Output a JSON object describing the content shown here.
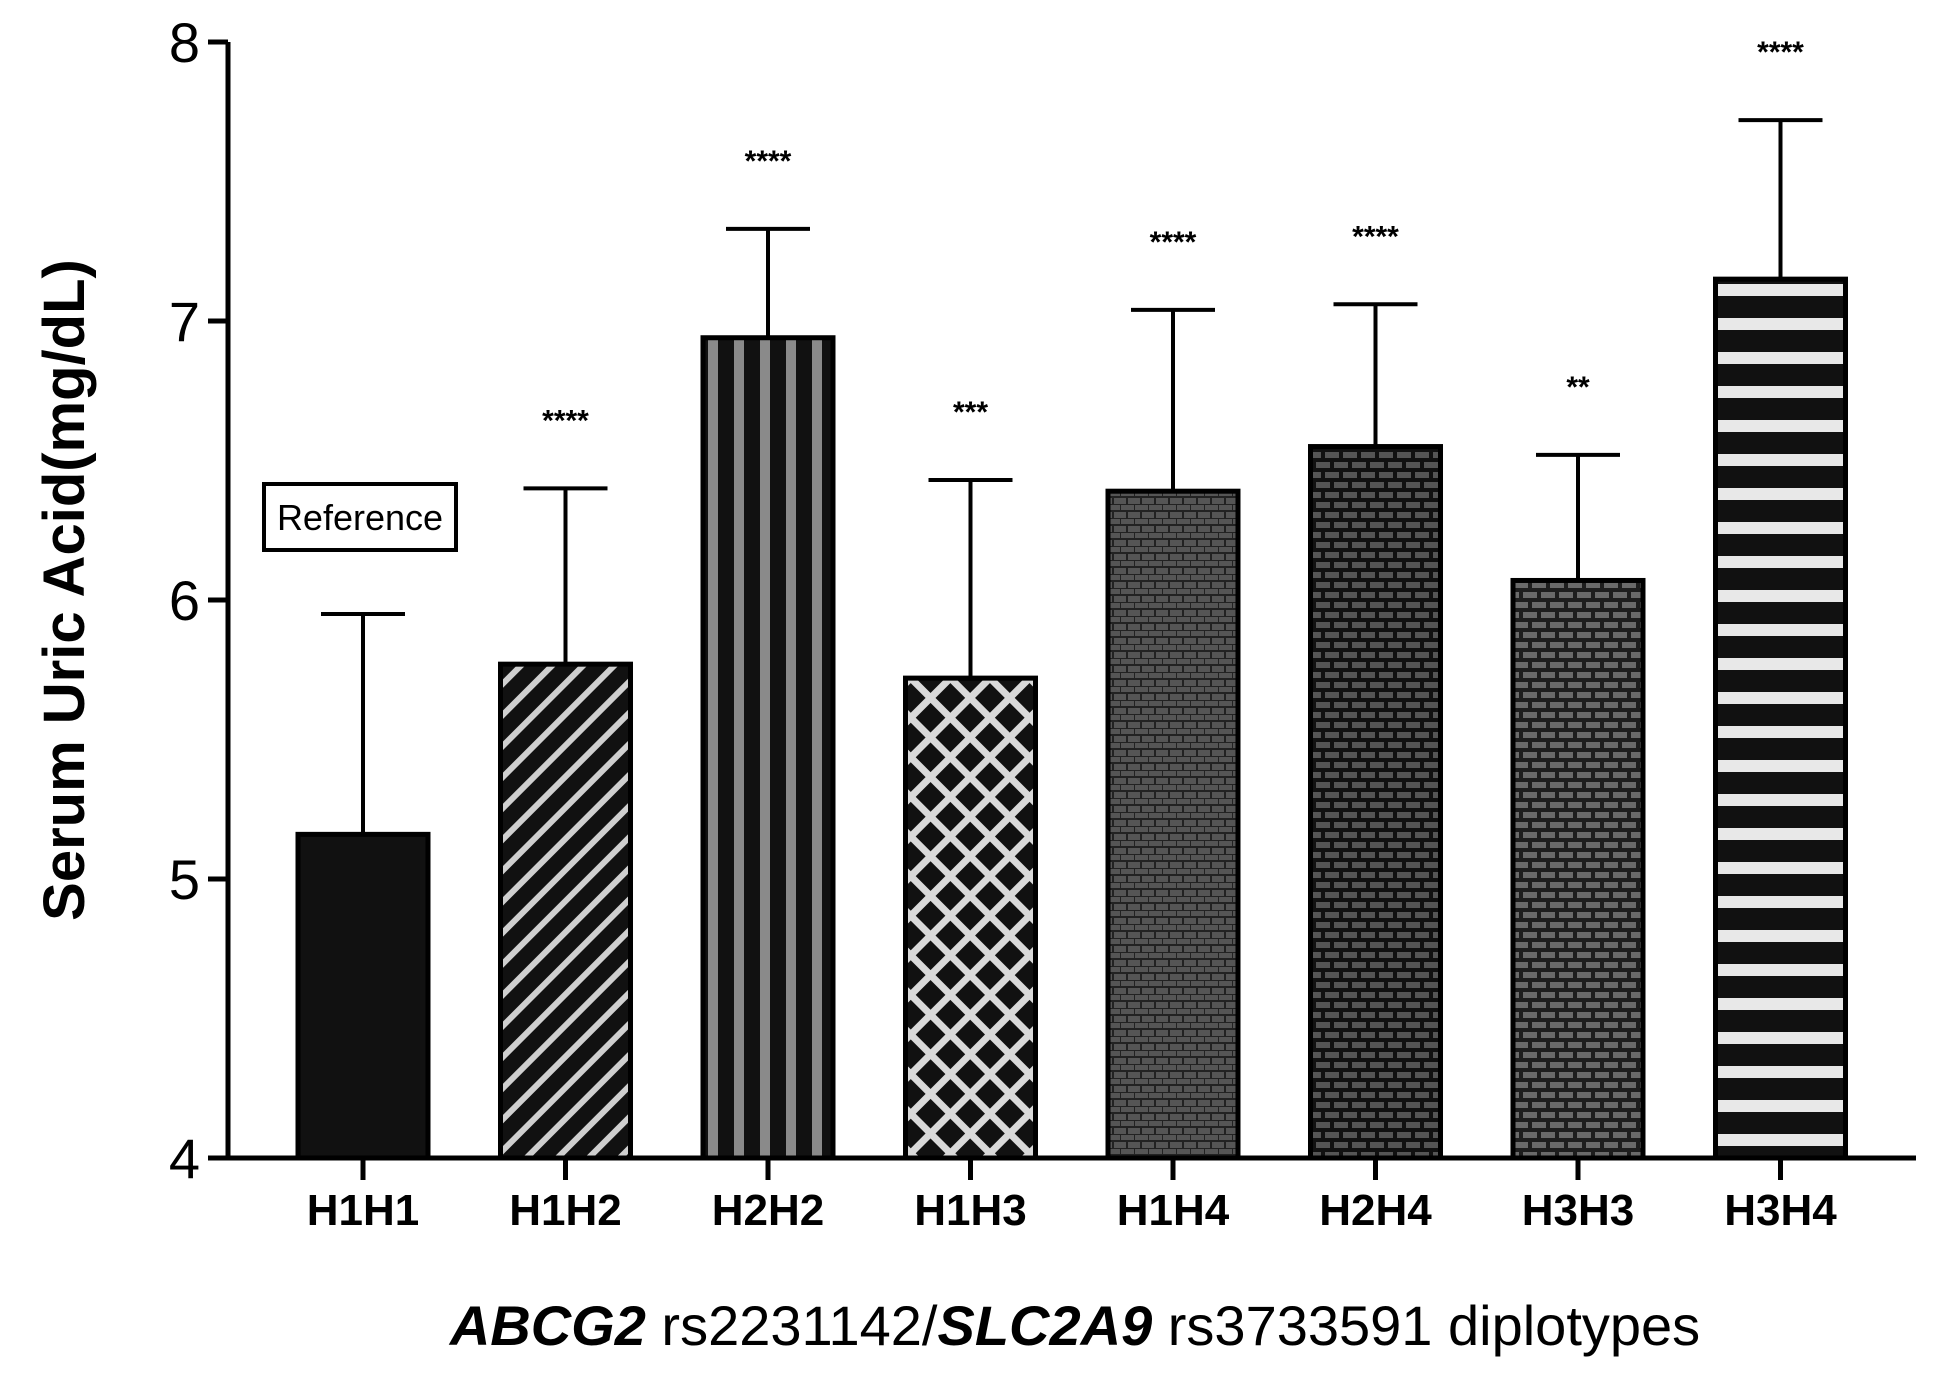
{
  "chart_data": {
    "type": "bar",
    "title": "",
    "ylabel": "Serum Uric Acid(mg/dL)",
    "xlabel": {
      "parts": [
        {
          "text": "ABCG2",
          "italic": true
        },
        {
          "text": " rs2231142/",
          "italic": false
        },
        {
          "text": "SLC2A9",
          "italic": true
        },
        {
          "text": " rs3733591 diplotypes",
          "italic": false
        }
      ]
    },
    "ylim": [
      4,
      8
    ],
    "yticks": [
      4,
      5,
      6,
      7,
      8
    ],
    "grid": false,
    "categories": [
      "H1H1",
      "H1H2",
      "H2H2",
      "H1H3",
      "H1H4",
      "H2H4",
      "H3H3",
      "H3H4"
    ],
    "values": [
      5.16,
      5.77,
      6.94,
      5.72,
      6.39,
      6.55,
      6.07,
      7.15
    ],
    "error_upper": [
      5.95,
      6.4,
      7.33,
      6.43,
      7.04,
      7.06,
      6.52,
      7.72
    ],
    "significance": [
      "",
      "****",
      "****",
      "***",
      "****",
      "****",
      "**",
      "****"
    ],
    "annotations": [
      {
        "category": "H1H1",
        "text": "Reference"
      }
    ],
    "patterns": [
      "solid",
      "diagonal",
      "vertical-stripes",
      "crosshatch",
      "fine-grid",
      "brick",
      "brick-gray",
      "horizontal-stripes"
    ]
  }
}
